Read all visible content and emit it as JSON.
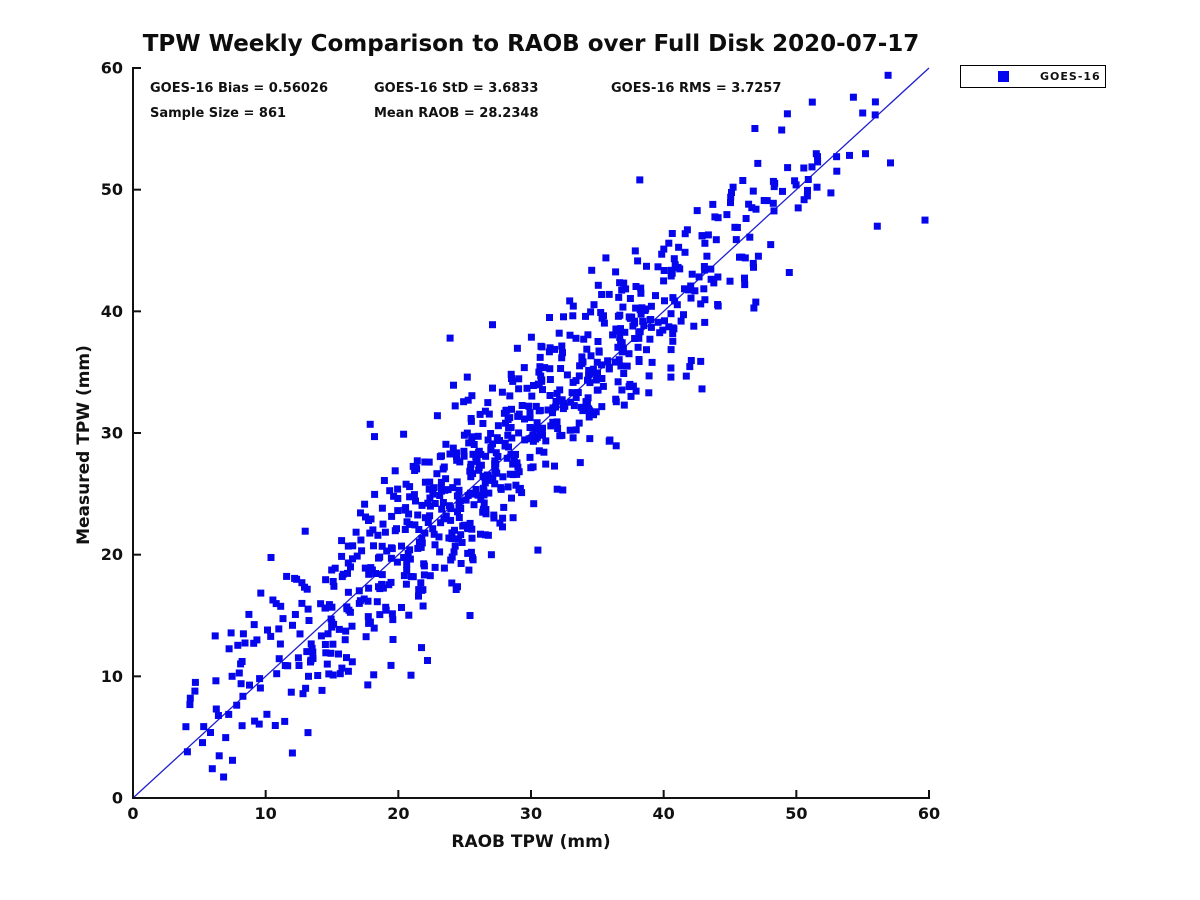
{
  "chart_data": {
    "type": "scatter",
    "title": "TPW Weekly Comparison to RAOB over Full Disk 2020-07-17",
    "xlabel": "RAOB TPW (mm)",
    "ylabel": "Measured TPW (mm)",
    "xlim": [
      0,
      60
    ],
    "ylim": [
      0,
      60
    ],
    "xticks": [
      0,
      10,
      20,
      30,
      40,
      50,
      60
    ],
    "yticks": [
      0,
      10,
      20,
      30,
      40,
      50,
      60
    ],
    "grid": false,
    "axis_color": "#111111",
    "tick_label_fontsize": 16,
    "stats": {
      "bias": 0.56026,
      "std": 3.6833,
      "rms": 3.7257,
      "sample_size": 861,
      "mean_raob": 28.2348
    },
    "stats_annotations": [
      {
        "text": "GOES-16 Bias = 0.56026"
      },
      {
        "text": "GOES-16 StD = 3.6833"
      },
      {
        "text": "GOES-16 RMS = 3.7257"
      },
      {
        "text": "Sample Size = 861"
      },
      {
        "text": "Mean RAOB = 28.2348"
      }
    ],
    "legend": {
      "position": "outside-top-right",
      "entries": [
        {
          "label": "GOES-16",
          "color": "#0404f0",
          "marker": "square"
        }
      ]
    },
    "identity_line": {
      "x0": 0,
      "y0": 0,
      "x1": 60,
      "y1": 60,
      "color": "#2020cf",
      "width": 1.3
    },
    "series": [
      {
        "name": "GOES-16",
        "marker": "square",
        "marker_color": "#0606ec",
        "marker_size_px": 7,
        "n_points": 861,
        "point_generator": {
          "seed": 20200717,
          "x_mean": 28.2348,
          "x_std": 11.6,
          "x_min": 3.9,
          "x_max": 59.8,
          "bias": 0.56026,
          "noise_std": 3.55,
          "y_min": 1.2,
          "y_max": 59.4
        },
        "notable_points": [
          [
            59.7,
            47.5
          ],
          [
            56.1,
            47.0
          ],
          [
            57.1,
            52.2
          ],
          [
            54.3,
            57.6
          ],
          [
            51.2,
            57.2
          ],
          [
            55.0,
            56.3
          ],
          [
            48.9,
            54.9
          ],
          [
            23.9,
            37.8
          ],
          [
            27.1,
            38.9
          ],
          [
            38.2,
            50.8
          ],
          [
            22.2,
            11.3
          ],
          [
            25.4,
            15.0
          ],
          [
            17.7,
            9.3
          ],
          [
            4.1,
            3.8
          ],
          [
            7.5,
            3.1
          ],
          [
            4.7,
            9.5
          ],
          [
            18.2,
            29.7
          ],
          [
            20.4,
            29.9
          ]
        ]
      }
    ]
  }
}
